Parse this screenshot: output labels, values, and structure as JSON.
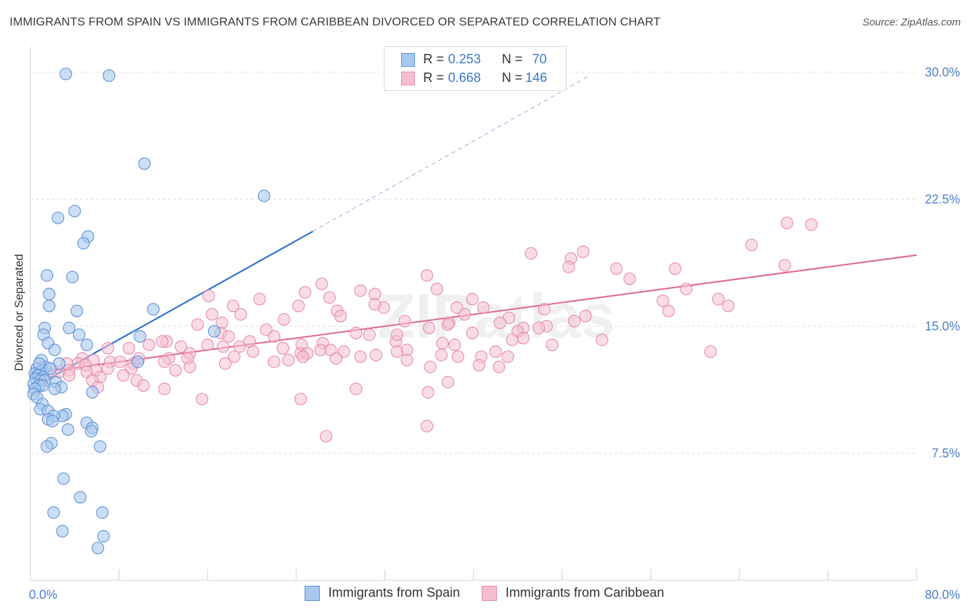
{
  "title": "IMMIGRANTS FROM SPAIN VS IMMIGRANTS FROM CARIBBEAN DIVORCED OR SEPARATED CORRELATION CHART",
  "source": "Source: ZipAtlas.com",
  "watermark": "ZIPatlas",
  "legend": {
    "series1": {
      "r_label": "R = ",
      "r_value": "0.253",
      "n_label": "N = ",
      "n_value": "70"
    },
    "series2": {
      "r_label": "R = ",
      "r_value": "0.668",
      "n_label": "N = ",
      "n_value": "146"
    }
  },
  "colors": {
    "spain_fill": "#a9c8ef",
    "spain_stroke": "#5b8fd6",
    "spain_line": "#2b6fcc",
    "carib_fill": "#f6bfd0",
    "carib_stroke": "#e58aa8",
    "carib_line": "#e06a95",
    "axis_label": "#4a7fc9"
  },
  "chart_data": {
    "type": "scatter",
    "title": "IMMIGRANTS FROM SPAIN VS IMMIGRANTS FROM CARIBBEAN DIVORCED OR SEPARATED CORRELATION CHART",
    "xlabel": "",
    "ylabel": "Divorced or Separated",
    "xlim": [
      0,
      80
    ],
    "ylim": [
      0,
      31.5
    ],
    "x_tick_labels": [
      "0.0%",
      "80.0%"
    ],
    "y_ticks": [
      7.5,
      15.0,
      22.5,
      30.0
    ],
    "y_tick_labels": [
      "7.5%",
      "15.0%",
      "22.5%",
      "30.0%"
    ],
    "series": [
      {
        "name": "Immigrants from Spain",
        "r": 0.253,
        "n": 70,
        "trend": {
          "x0": 0,
          "y0": 11.3,
          "x1": 25.5,
          "y1": 20.6,
          "dash_to_x": 50.5,
          "dash_to_y": 29.8
        },
        "points": [
          [
            3.2,
            29.9
          ],
          [
            7.1,
            29.8
          ],
          [
            10.3,
            24.6
          ],
          [
            21.1,
            22.7
          ],
          [
            2.5,
            21.4
          ],
          [
            4.0,
            21.8
          ],
          [
            5.2,
            20.3
          ],
          [
            4.8,
            19.9
          ],
          [
            1.5,
            18.0
          ],
          [
            3.8,
            17.9
          ],
          [
            1.7,
            16.9
          ],
          [
            1.7,
            16.2
          ],
          [
            4.2,
            15.9
          ],
          [
            11.1,
            16.0
          ],
          [
            16.6,
            14.7
          ],
          [
            1.3,
            14.9
          ],
          [
            3.5,
            14.9
          ],
          [
            1.2,
            14.5
          ],
          [
            4.4,
            14.5
          ],
          [
            9.9,
            14.4
          ],
          [
            1.6,
            14.0
          ],
          [
            5.1,
            13.9
          ],
          [
            2.2,
            13.6
          ],
          [
            1.0,
            13.0
          ],
          [
            9.7,
            12.9
          ],
          [
            2.6,
            12.8
          ],
          [
            1.4,
            12.6
          ],
          [
            0.6,
            12.5
          ],
          [
            0.9,
            12.3
          ],
          [
            1.1,
            12.4
          ],
          [
            0.4,
            12.2
          ],
          [
            0.7,
            12.1
          ],
          [
            1.2,
            12.0
          ],
          [
            0.5,
            11.9
          ],
          [
            0.9,
            11.8
          ],
          [
            1.3,
            11.8
          ],
          [
            2.3,
            11.7
          ],
          [
            0.3,
            11.6
          ],
          [
            0.8,
            11.5
          ],
          [
            1.1,
            11.5
          ],
          [
            2.8,
            11.4
          ],
          [
            2.2,
            11.3
          ],
          [
            0.4,
            11.3
          ],
          [
            5.6,
            11.1
          ],
          [
            0.3,
            11.0
          ],
          [
            0.6,
            10.8
          ],
          [
            1.1,
            10.4
          ],
          [
            0.9,
            10.1
          ],
          [
            1.6,
            10.0
          ],
          [
            3.2,
            9.8
          ],
          [
            2.9,
            9.7
          ],
          [
            2.1,
            9.7
          ],
          [
            1.6,
            9.5
          ],
          [
            2.0,
            9.4
          ],
          [
            5.1,
            9.3
          ],
          [
            5.6,
            9.0
          ],
          [
            5.5,
            8.8
          ],
          [
            3.4,
            8.9
          ],
          [
            1.9,
            8.1
          ],
          [
            1.5,
            7.9
          ],
          [
            6.3,
            7.9
          ],
          [
            3.0,
            6.0
          ],
          [
            4.5,
            4.9
          ],
          [
            2.1,
            4.0
          ],
          [
            6.5,
            4.0
          ],
          [
            2.9,
            2.9
          ],
          [
            6.6,
            2.6
          ],
          [
            6.1,
            1.9
          ],
          [
            1.8,
            12.5
          ],
          [
            0.8,
            12.8
          ]
        ]
      },
      {
        "name": "Immigrants from Caribbean",
        "r": 0.668,
        "n": 146,
        "trend": {
          "x0": 0,
          "y0": 12.2,
          "x1": 80,
          "y1": 19.2
        },
        "points": [
          [
            70.5,
            21.0
          ],
          [
            68.3,
            21.1
          ],
          [
            65.1,
            19.8
          ],
          [
            45.2,
            19.3
          ],
          [
            49.9,
            19.4
          ],
          [
            48.8,
            19.0
          ],
          [
            68.1,
            18.6
          ],
          [
            48.6,
            18.5
          ],
          [
            52.9,
            18.4
          ],
          [
            58.2,
            18.4
          ],
          [
            35.8,
            18.0
          ],
          [
            54.1,
            17.8
          ],
          [
            26.3,
            17.5
          ],
          [
            36.7,
            17.2
          ],
          [
            59.2,
            17.2
          ],
          [
            29.8,
            17.1
          ],
          [
            31.1,
            16.9
          ],
          [
            24.8,
            17.0
          ],
          [
            16.1,
            16.8
          ],
          [
            27.0,
            16.7
          ],
          [
            20.7,
            16.6
          ],
          [
            39.9,
            16.6
          ],
          [
            57.1,
            16.5
          ],
          [
            18.3,
            16.2
          ],
          [
            24.2,
            16.2
          ],
          [
            31.9,
            16.1
          ],
          [
            46.4,
            16.0
          ],
          [
            40.9,
            16.1
          ],
          [
            27.7,
            15.9
          ],
          [
            57.6,
            15.9
          ],
          [
            16.4,
            15.7
          ],
          [
            19.0,
            15.7
          ],
          [
            28.0,
            15.6
          ],
          [
            50.1,
            15.6
          ],
          [
            43.2,
            15.5
          ],
          [
            22.9,
            15.4
          ],
          [
            33.8,
            15.3
          ],
          [
            17.3,
            15.2
          ],
          [
            37.8,
            15.2
          ],
          [
            42.4,
            15.2
          ],
          [
            37.7,
            15.1
          ],
          [
            15.1,
            15.1
          ],
          [
            36.0,
            14.9
          ],
          [
            44.5,
            14.9
          ],
          [
            44.0,
            14.7
          ],
          [
            21.3,
            14.8
          ],
          [
            17.2,
            14.6
          ],
          [
            39.9,
            14.6
          ],
          [
            29.4,
            14.6
          ],
          [
            30.6,
            14.5
          ],
          [
            22.0,
            14.4
          ],
          [
            17.9,
            14.4
          ],
          [
            44.5,
            14.3
          ],
          [
            43.5,
            14.2
          ],
          [
            12.3,
            14.1
          ],
          [
            11.9,
            14.1
          ],
          [
            19.8,
            14.1
          ],
          [
            33.0,
            14.1
          ],
          [
            37.2,
            14.0
          ],
          [
            26.4,
            14.0
          ],
          [
            10.7,
            13.9
          ],
          [
            16.0,
            13.9
          ],
          [
            24.5,
            13.9
          ],
          [
            38.3,
            13.9
          ],
          [
            13.6,
            13.8
          ],
          [
            18.9,
            13.8
          ],
          [
            17.4,
            13.8
          ],
          [
            22.8,
            13.7
          ],
          [
            26.2,
            13.6
          ],
          [
            34.0,
            13.6
          ],
          [
            7.0,
            13.7
          ],
          [
            8.9,
            13.7
          ],
          [
            27.1,
            13.6
          ],
          [
            28.3,
            13.5
          ],
          [
            20.1,
            13.5
          ],
          [
            24.4,
            13.4
          ],
          [
            33.1,
            13.5
          ],
          [
            25.0,
            13.4
          ],
          [
            14.4,
            13.4
          ],
          [
            24.6,
            13.2
          ],
          [
            29.8,
            13.2
          ],
          [
            31.2,
            13.3
          ],
          [
            18.4,
            13.2
          ],
          [
            37.1,
            13.3
          ],
          [
            38.6,
            13.2
          ],
          [
            40.7,
            13.2
          ],
          [
            43.1,
            13.2
          ],
          [
            12.5,
            13.1
          ],
          [
            9.8,
            13.1
          ],
          [
            14.2,
            13.1
          ],
          [
            5.7,
            13.0
          ],
          [
            4.7,
            13.1
          ],
          [
            27.6,
            13.1
          ],
          [
            34.0,
            13.0
          ],
          [
            23.3,
            13.0
          ],
          [
            22.0,
            12.9
          ],
          [
            7.2,
            12.9
          ],
          [
            8.1,
            12.9
          ],
          [
            12.1,
            12.9
          ],
          [
            9.3,
            12.8
          ],
          [
            17.6,
            12.8
          ],
          [
            4.3,
            12.8
          ],
          [
            3.3,
            12.8
          ],
          [
            5.0,
            12.7
          ],
          [
            40.5,
            12.7
          ],
          [
            42.3,
            12.6
          ],
          [
            36.1,
            12.6
          ],
          [
            14.4,
            12.6
          ],
          [
            7.0,
            12.5
          ],
          [
            9.1,
            12.5
          ],
          [
            5.9,
            12.4
          ],
          [
            3.5,
            12.4
          ],
          [
            13.1,
            12.4
          ],
          [
            5.1,
            12.3
          ],
          [
            2.6,
            12.3
          ],
          [
            1.8,
            12.2
          ],
          [
            8.4,
            12.1
          ],
          [
            6.3,
            12.0
          ],
          [
            0.9,
            12.0
          ],
          [
            3.5,
            12.1
          ],
          [
            1.1,
            11.9
          ],
          [
            5.6,
            11.8
          ],
          [
            9.6,
            11.8
          ],
          [
            37.7,
            11.7
          ],
          [
            10.2,
            11.5
          ],
          [
            6.1,
            11.4
          ],
          [
            12.1,
            11.3
          ],
          [
            29.4,
            11.3
          ],
          [
            35.9,
            11.1
          ],
          [
            24.4,
            10.7
          ],
          [
            15.5,
            10.7
          ],
          [
            26.7,
            8.5
          ],
          [
            35.8,
            9.1
          ],
          [
            61.4,
            13.5
          ],
          [
            63.0,
            16.2
          ],
          [
            62.1,
            16.6
          ],
          [
            38.5,
            16.1
          ],
          [
            31.1,
            16.3
          ],
          [
            51.6,
            14.2
          ],
          [
            49.1,
            15.3
          ],
          [
            46.6,
            15.0
          ],
          [
            33.1,
            14.5
          ],
          [
            42.0,
            13.5
          ],
          [
            39.2,
            15.7
          ],
          [
            45.9,
            14.9
          ],
          [
            47.1,
            13.9
          ]
        ]
      }
    ]
  },
  "bottom_legend": [
    "Immigrants from Spain",
    "Immigrants from Caribbean"
  ]
}
